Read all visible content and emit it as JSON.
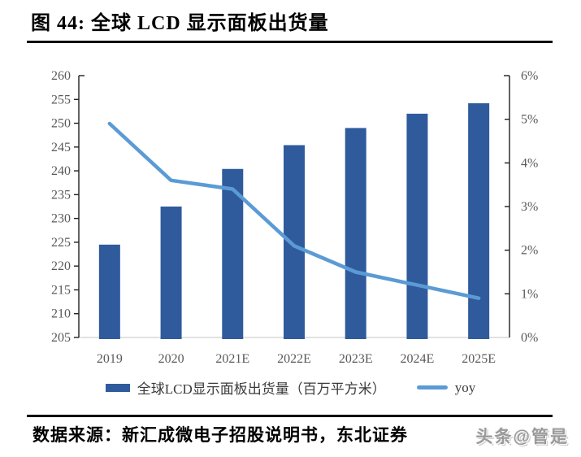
{
  "figure": {
    "title": "图 44: 全球 LCD 显示面板出货量",
    "source": "数据来源：新汇成微电子招股说明书，东北证券",
    "watermark": "头条@管是"
  },
  "colors": {
    "bar": "#2F5B9D",
    "line": "#5B9BD5",
    "axis_text": "#595959",
    "axis_line": "#1f1f1f",
    "baseline": "#d9d9d9",
    "rule": "#000000"
  },
  "chart_data": {
    "type": "bar",
    "title": "全球LCD显示面板出货量",
    "categories": [
      "2019",
      "2020",
      "2021E",
      "2022E",
      "2023E",
      "2024E",
      "2025E"
    ],
    "series": [
      {
        "name": "全球LCD显示面板出货量（百万平方米）",
        "type": "bar",
        "axis": "left",
        "values": [
          224.5,
          232.5,
          240.4,
          245.4,
          249.0,
          252.0,
          254.2
        ]
      },
      {
        "name": "yoy",
        "type": "line",
        "axis": "right",
        "values": [
          4.9,
          3.6,
          3.4,
          2.1,
          1.5,
          1.2,
          0.9
        ]
      }
    ],
    "left_axis": {
      "min": 205,
      "max": 260,
      "step": 5,
      "tick_labels": [
        "260",
        "255",
        "250",
        "245",
        "240",
        "235",
        "230",
        "225",
        "220",
        "215",
        "210",
        "205"
      ]
    },
    "right_axis": {
      "min": 0,
      "max": 6,
      "step": 1,
      "tick_labels": [
        "6%",
        "5%",
        "4%",
        "3%",
        "2%",
        "1%",
        "0%"
      ]
    },
    "legend_position": "bottom",
    "grid": false
  }
}
